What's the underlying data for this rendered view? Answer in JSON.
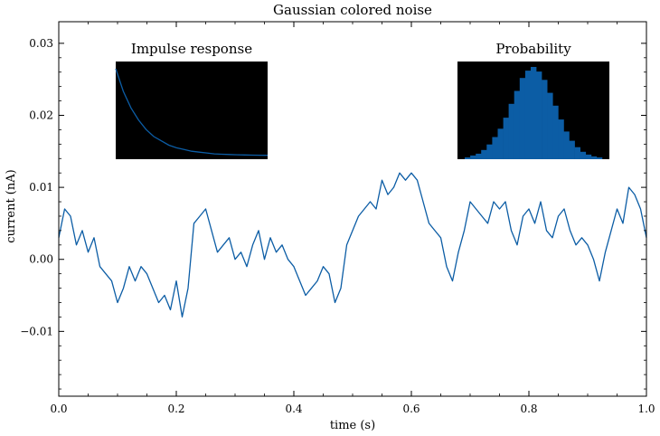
{
  "chart_data": {
    "type": "line",
    "title": "Gaussian colored noise",
    "xlabel": "time (s)",
    "ylabel": "current (nA)",
    "xlim": [
      0.0,
      1.0
    ],
    "ylim": [
      -0.019,
      0.033
    ],
    "xticks": [
      0.0,
      0.2,
      0.4,
      0.6,
      0.8,
      1.0
    ],
    "xtick_labels": [
      "0.0",
      "0.2",
      "0.4",
      "0.6",
      "0.8",
      "1.0"
    ],
    "yticks": [
      -0.01,
      0.0,
      0.01,
      0.02,
      0.03
    ],
    "ytick_labels": [
      "−0.01",
      "0.00",
      "0.01",
      "0.02",
      "0.03"
    ],
    "grid": false,
    "series": [
      {
        "color": "#0C5DA5",
        "x": [
          0.0,
          0.01,
          0.02,
          0.03,
          0.04,
          0.05,
          0.06,
          0.07,
          0.08,
          0.09,
          0.1,
          0.11,
          0.12,
          0.13,
          0.14,
          0.15,
          0.16,
          0.17,
          0.18,
          0.19,
          0.2,
          0.21,
          0.22,
          0.23,
          0.24,
          0.25,
          0.26,
          0.27,
          0.28,
          0.29,
          0.3,
          0.31,
          0.32,
          0.33,
          0.34,
          0.35,
          0.36,
          0.37,
          0.38,
          0.39,
          0.4,
          0.41,
          0.42,
          0.43,
          0.44,
          0.45,
          0.46,
          0.47,
          0.48,
          0.49,
          0.5,
          0.51,
          0.52,
          0.53,
          0.54,
          0.55,
          0.56,
          0.57,
          0.58,
          0.59,
          0.6,
          0.61,
          0.62,
          0.63,
          0.64,
          0.65,
          0.66,
          0.67,
          0.68,
          0.69,
          0.7,
          0.71,
          0.72,
          0.73,
          0.74,
          0.75,
          0.76,
          0.77,
          0.78,
          0.79,
          0.8,
          0.81,
          0.82,
          0.83,
          0.84,
          0.85,
          0.86,
          0.87,
          0.88,
          0.89,
          0.9,
          0.91,
          0.92,
          0.93,
          0.94,
          0.95,
          0.96,
          0.97,
          0.98,
          0.99,
          1.0
        ],
        "values": [
          0.003,
          0.007,
          0.006,
          0.002,
          0.004,
          0.001,
          0.003,
          -0.001,
          -0.002,
          -0.003,
          -0.006,
          -0.004,
          -0.001,
          -0.003,
          -0.001,
          -0.002,
          -0.004,
          -0.006,
          -0.005,
          -0.007,
          -0.003,
          -0.008,
          -0.004,
          0.005,
          0.006,
          0.007,
          0.004,
          0.001,
          0.002,
          0.003,
          0.0,
          0.001,
          -0.001,
          0.002,
          0.004,
          0.0,
          0.003,
          0.001,
          0.002,
          0.0,
          -0.001,
          -0.003,
          -0.005,
          -0.004,
          -0.003,
          -0.001,
          -0.002,
          -0.006,
          -0.004,
          0.002,
          0.004,
          0.006,
          0.007,
          0.008,
          0.007,
          0.011,
          0.009,
          0.01,
          0.012,
          0.011,
          0.012,
          0.011,
          0.008,
          0.005,
          0.004,
          0.003,
          -0.001,
          -0.003,
          0.001,
          0.004,
          0.008,
          0.007,
          0.006,
          0.005,
          0.008,
          0.007,
          0.008,
          0.004,
          0.002,
          0.006,
          0.007,
          0.005,
          0.008,
          0.004,
          0.003,
          0.006,
          0.007,
          0.004,
          0.002,
          0.003,
          0.002,
          0.0,
          -0.003,
          0.001,
          0.004,
          0.007,
          0.005,
          0.01,
          0.009,
          0.007,
          0.003
        ]
      }
    ],
    "insets": [
      {
        "title": "Impulse response",
        "type": "line",
        "background": "#000000",
        "color": "#0C5DA5",
        "x": [
          0,
          0.05,
          0.1,
          0.15,
          0.2,
          0.25,
          0.3,
          0.35,
          0.4,
          0.45,
          0.5,
          0.55,
          0.6,
          0.65,
          0.7,
          0.75,
          0.8,
          0.85,
          0.9,
          0.95,
          1.0
        ],
        "values": [
          1.0,
          0.74,
          0.55,
          0.41,
          0.3,
          0.22,
          0.17,
          0.12,
          0.09,
          0.07,
          0.05,
          0.04,
          0.03,
          0.02,
          0.016,
          0.012,
          0.009,
          0.007,
          0.005,
          0.004,
          0.003
        ]
      },
      {
        "title": "Probability",
        "type": "bar",
        "background": "#000000",
        "color": "#0C5DA5",
        "x": [
          -0.009,
          -0.008,
          -0.007,
          -0.006,
          -0.005,
          -0.004,
          -0.003,
          -0.002,
          -0.001,
          0.0,
          0.001,
          0.002,
          0.003,
          0.004,
          0.005,
          0.006,
          0.007,
          0.008,
          0.009,
          0.01,
          0.011,
          0.012,
          0.013,
          0.014,
          0.015
        ],
        "values": [
          0.02,
          0.04,
          0.06,
          0.1,
          0.16,
          0.24,
          0.33,
          0.45,
          0.6,
          0.74,
          0.88,
          0.96,
          1.0,
          0.95,
          0.86,
          0.72,
          0.58,
          0.43,
          0.3,
          0.2,
          0.13,
          0.08,
          0.05,
          0.03,
          0.02
        ]
      }
    ]
  }
}
